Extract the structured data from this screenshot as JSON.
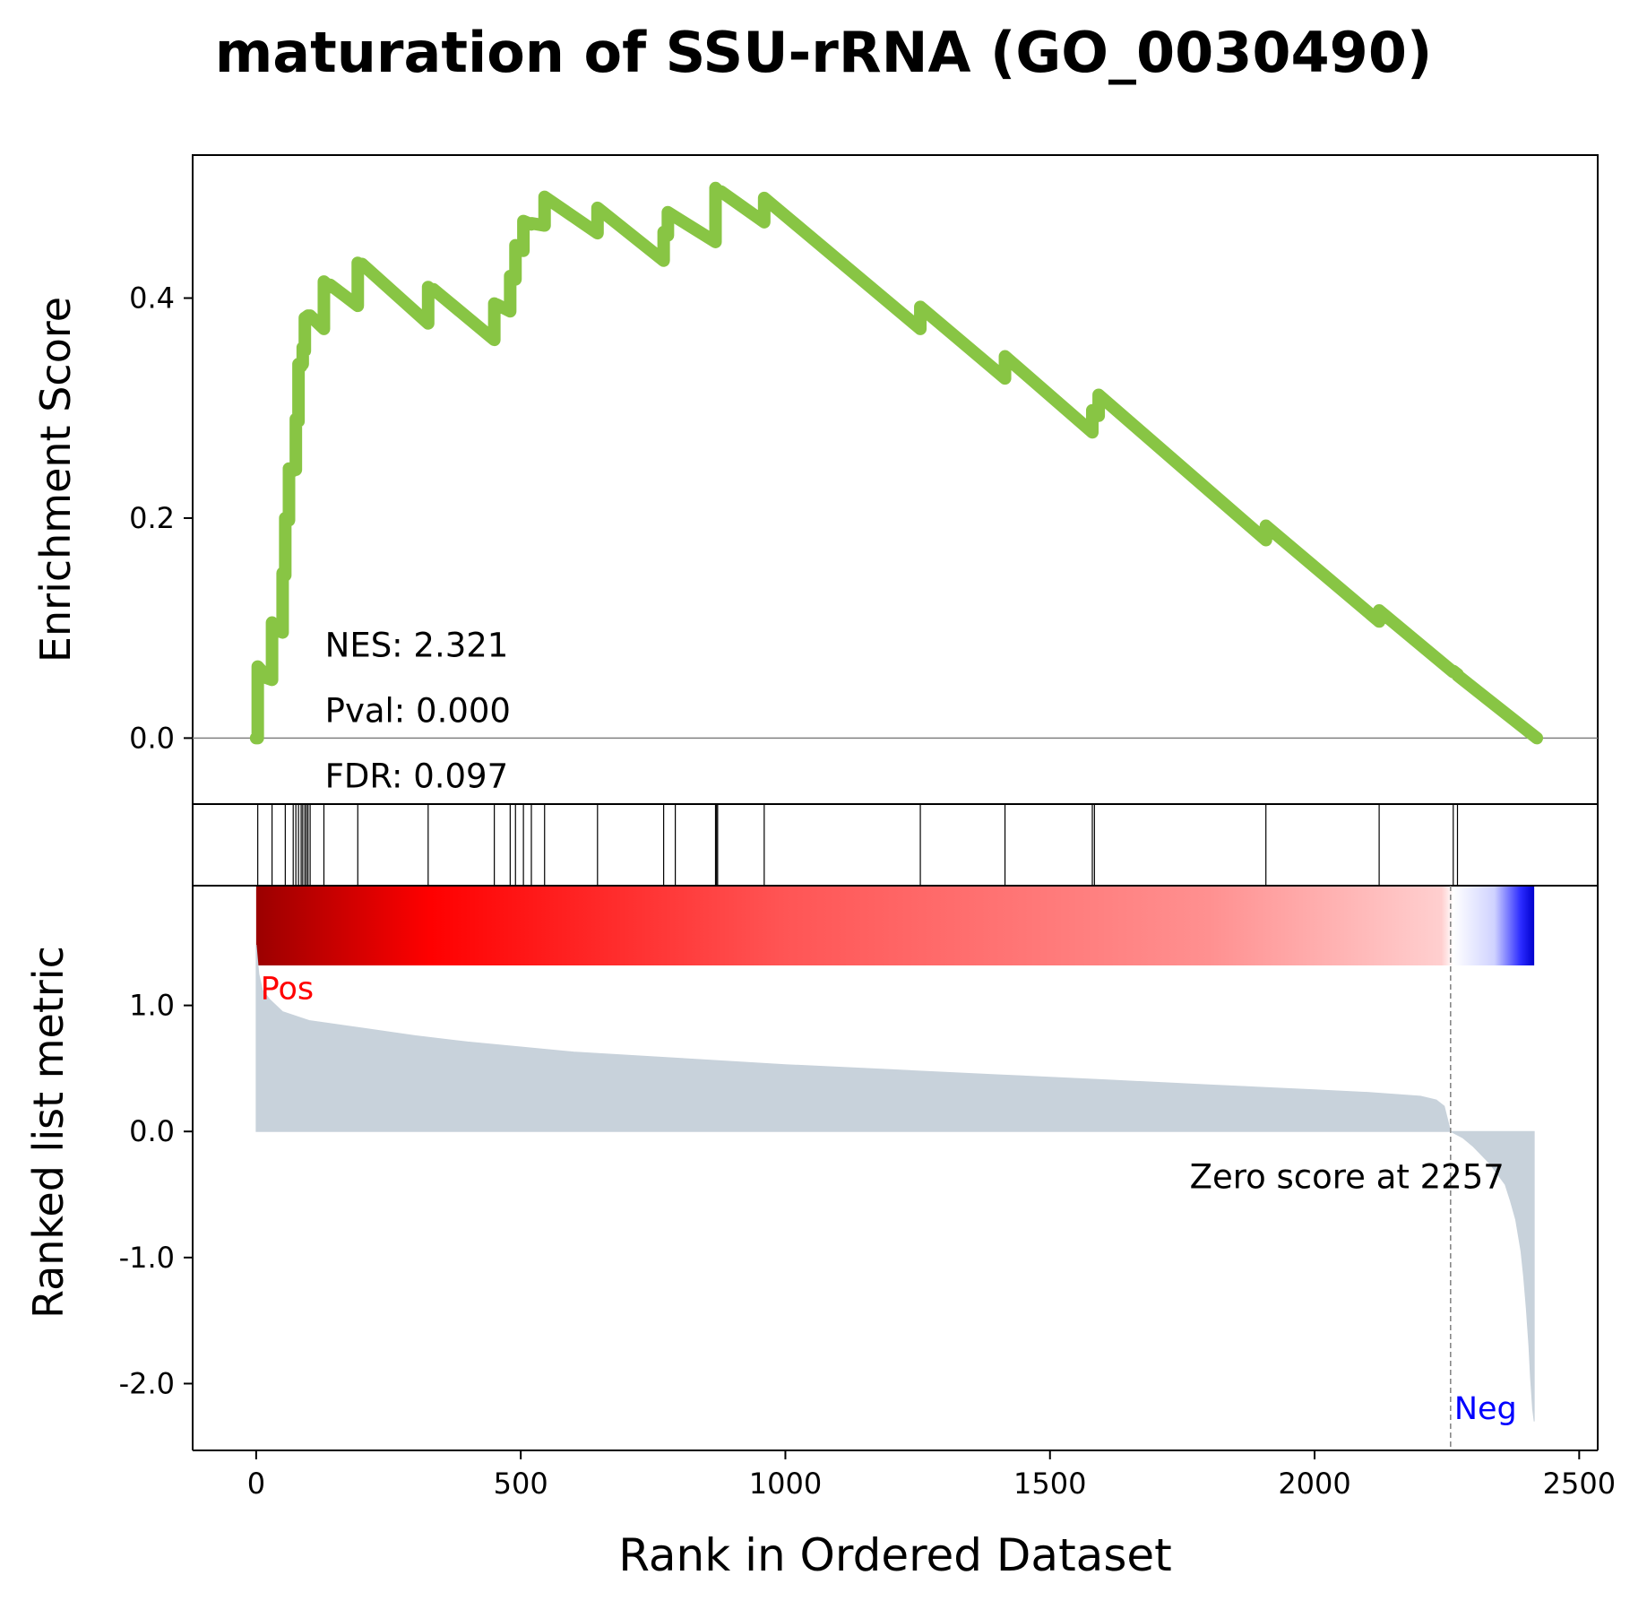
{
  "chart_data": {
    "type": "line",
    "title": "maturation of SSU-rRNA (GO_0030490)",
    "xlabel": "Rank in Ordered Dataset",
    "xlim": [
      -120,
      2535
    ],
    "xticks": [
      0,
      500,
      1000,
      1500,
      2000,
      2500
    ],
    "xtick_labels": [
      "0",
      "500",
      "1000",
      "1500",
      "2000",
      "2500"
    ],
    "enrichment_panel": {
      "ylabel": "Enrichment Score",
      "ylim": [
        -0.06,
        0.53
      ],
      "yticks": [
        0.0,
        0.2,
        0.4
      ],
      "ytick_labels": [
        "0.0",
        "0.2",
        "0.4"
      ],
      "line_color": "#88c544",
      "zero_line": true,
      "stats": [
        "NES: 2.321",
        "Pval: 0.000",
        "FDR: 0.097"
      ],
      "series": [
        {
          "x": [
            0,
            3,
            3,
            18,
            18,
            30,
            30,
            40,
            40,
            50,
            50,
            55,
            55,
            62,
            62,
            70,
            70,
            75,
            75,
            80,
            80,
            85,
            85,
            88,
            88,
            92,
            92,
            95,
            95,
            98,
            98,
            102,
            102,
            128,
            128,
            140,
            140,
            192,
            192,
            200,
            200,
            325,
            325,
            335,
            335,
            450,
            450,
            455,
            455,
            480,
            480,
            490,
            490,
            505,
            505,
            520,
            520,
            545,
            545,
            645,
            645,
            770,
            770,
            778,
            778,
            868,
            868,
            878,
            878,
            960,
            960,
            1255,
            1255,
            1415,
            1415,
            1580,
            1580,
            1592,
            1592,
            1908,
            1908,
            2122,
            2122,
            2262,
            2262,
            2270,
            2270,
            2420
          ],
          "y": [
            0.0,
            0.0,
            0.065,
            0.057,
            0.055,
            0.053,
            0.105,
            0.1,
            0.098,
            0.096,
            0.15,
            0.148,
            0.2,
            0.198,
            0.245,
            0.243,
            0.246,
            0.244,
            0.29,
            0.288,
            0.34,
            0.338,
            0.341,
            0.34,
            0.355,
            0.352,
            0.382,
            0.381,
            0.383,
            0.382,
            0.384,
            0.383,
            0.384,
            0.372,
            0.415,
            0.41,
            0.412,
            0.393,
            0.432,
            0.429,
            0.431,
            0.377,
            0.41,
            0.405,
            0.408,
            0.362,
            0.395,
            0.393,
            0.394,
            0.388,
            0.42,
            0.417,
            0.448,
            0.443,
            0.47,
            0.467,
            0.468,
            0.466,
            0.492,
            0.459,
            0.482,
            0.434,
            0.46,
            0.457,
            0.478,
            0.451,
            0.5,
            0.495,
            0.497,
            0.469,
            0.491,
            0.372,
            0.392,
            0.327,
            0.347,
            0.278,
            0.298,
            0.293,
            0.312,
            0.18,
            0.193,
            0.106,
            0.116,
            0.06,
            0.061,
            0.058,
            0.057,
            0.0
          ]
        }
      ]
    },
    "hit_positions": [
      3,
      30,
      55,
      70,
      75,
      80,
      85,
      88,
      92,
      95,
      98,
      102,
      128,
      192,
      325,
      450,
      480,
      490,
      505,
      520,
      545,
      645,
      770,
      792,
      868,
      870,
      872,
      960,
      1255,
      1415,
      1580,
      1584,
      1908,
      2122,
      2262,
      2270
    ],
    "rank_colorbar": {
      "x_start": 0,
      "x_end": 2415,
      "zero_at": 2257,
      "stops": [
        {
          "x": 0,
          "color": "#9b0000"
        },
        {
          "x": 330,
          "color": "#ff0000"
        },
        {
          "x": 1000,
          "color": "#ff5555"
        },
        {
          "x": 1800,
          "color": "#ff9090"
        },
        {
          "x": 2240,
          "color": "#ffcfcf"
        },
        {
          "x": 2262,
          "color": "#ffffff"
        },
        {
          "x": 2340,
          "color": "#cfd2ff"
        },
        {
          "x": 2390,
          "color": "#2a2aff"
        },
        {
          "x": 2415,
          "color": "#0000cc"
        }
      ]
    },
    "ranked_metric_panel": {
      "ylabel": "Ranked list metric",
      "ylim": [
        -2.53,
        1.95
      ],
      "yticks": [
        1.0,
        0.0,
        -1.0,
        -2.0
      ],
      "ytick_labels": [
        "1.0",
        "0.0",
        "-1.0",
        "-2.0"
      ],
      "fill_color": "#c8d2db",
      "pos_label": "Pos",
      "pos_color": "#ff0000",
      "neg_label": "Neg",
      "neg_color": "#0000ff",
      "zero_score_label": "Zero score at 2257",
      "zero_rank": 2257,
      "x": [
        0,
        5,
        12,
        25,
        50,
        100,
        200,
        300,
        400,
        500,
        600,
        800,
        1000,
        1200,
        1400,
        1600,
        1800,
        2000,
        2100,
        2200,
        2230,
        2245,
        2257,
        2280,
        2300,
        2330,
        2360,
        2370,
        2380,
        2390,
        2395,
        2400,
        2405,
        2408,
        2412,
        2415
      ],
      "y": [
        1.48,
        1.25,
        1.12,
        1.05,
        0.95,
        0.88,
        0.82,
        0.76,
        0.71,
        0.67,
        0.63,
        0.58,
        0.53,
        0.49,
        0.45,
        0.41,
        0.37,
        0.33,
        0.31,
        0.28,
        0.25,
        0.2,
        0.0,
        -0.05,
        -0.12,
        -0.25,
        -0.42,
        -0.55,
        -0.7,
        -0.95,
        -1.15,
        -1.4,
        -1.7,
        -1.95,
        -2.2,
        -2.3
      ]
    }
  }
}
